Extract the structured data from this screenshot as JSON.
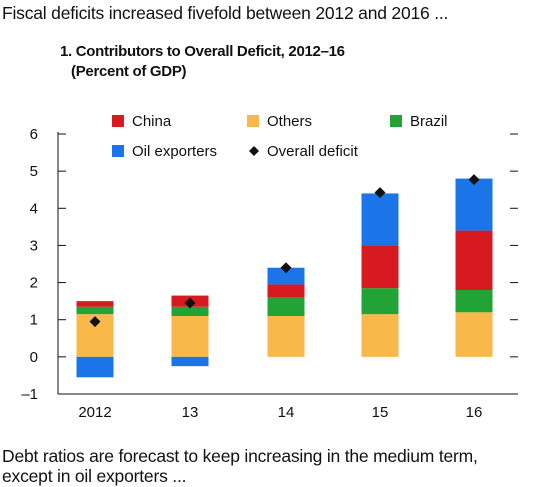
{
  "intro_text": "Fiscal deficits increased fivefold between 2012 and 2016 ...",
  "outro_text": "Debt ratios are forecast to keep increasing in the medium term, except in oil exporters ...",
  "chart_data": {
    "type": "bar",
    "stacked": true,
    "title": "1. Contributors to Overall Deficit, 2012–16",
    "subtitle": "(Percent of GDP)",
    "categories": [
      "2012",
      "13",
      "14",
      "15",
      "16"
    ],
    "ylim": [
      -1,
      6
    ],
    "yticks": [
      "–1",
      "0",
      "1",
      "2",
      "3",
      "4",
      "5",
      "6"
    ],
    "series": [
      {
        "name": "Others",
        "color": "#F9B84A",
        "values": [
          1.15,
          1.1,
          1.1,
          1.15,
          1.2
        ]
      },
      {
        "name": "Brazil",
        "color": "#22A336",
        "values": [
          0.2,
          0.25,
          0.5,
          0.7,
          0.6
        ]
      },
      {
        "name": "China",
        "color": "#D71920",
        "values": [
          0.15,
          0.3,
          0.35,
          1.15,
          1.6
        ]
      },
      {
        "name": "Oil exporters",
        "color": "#1C75E8",
        "values": [
          -0.55,
          -0.25,
          0.45,
          1.4,
          1.4
        ]
      }
    ],
    "overall_deficit": {
      "name": "Overall deficit",
      "values": [
        0.95,
        1.45,
        2.4,
        4.42,
        4.77
      ]
    },
    "legend": [
      {
        "name": "China",
        "color": "#D71920",
        "marker": "square"
      },
      {
        "name": "Others",
        "color": "#F9B84A",
        "marker": "square"
      },
      {
        "name": "Brazil",
        "color": "#22A336",
        "marker": "square"
      },
      {
        "name": "Oil exporters",
        "color": "#1C75E8",
        "marker": "square"
      },
      {
        "name": "Overall deficit",
        "color": "#111111",
        "marker": "diamond"
      }
    ]
  }
}
